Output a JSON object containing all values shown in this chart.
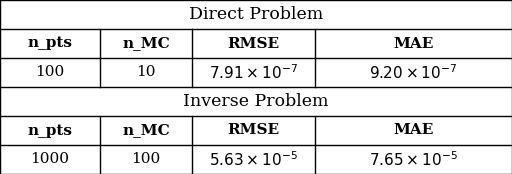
{
  "direct_header": "Direct Problem",
  "inverse_header": "Inverse Problem",
  "col_headers": [
    "n_pts",
    "n_MC",
    "RMSE",
    "MAE"
  ],
  "direct_row": [
    "100",
    "10",
    "$7.91 \\times 10^{-7}$",
    "$9.20 \\times 10^{-7}$"
  ],
  "inverse_row": [
    "1000",
    "100",
    "$5.63 \\times 10^{-5}$",
    "$7.65 \\times 10^{-5}$"
  ],
  "bg_color": "#ffffff",
  "text_color": "#000000",
  "section_header_fontsize": 12.5,
  "col_header_fontsize": 11,
  "cell_fontsize": 11,
  "lw": 1.0,
  "col_bounds": [
    0.0,
    0.195,
    0.375,
    0.615,
    1.0
  ],
  "row_tops": [
    1.0,
    0.833,
    0.667,
    0.5,
    0.333,
    0.167,
    0.0
  ]
}
